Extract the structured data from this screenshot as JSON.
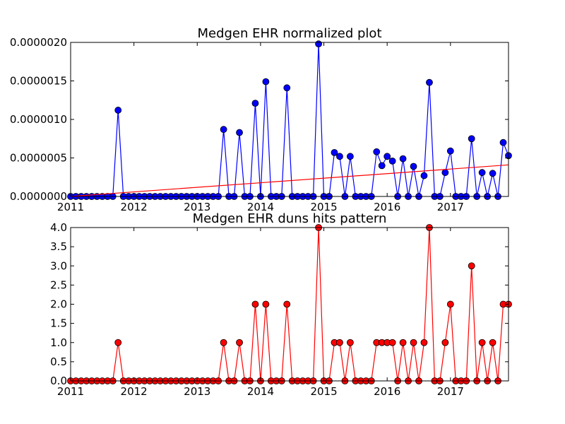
{
  "colors": {
    "top_series": "#0000ff",
    "top_trend": "#ff0000",
    "bottom_series": "#ff0000",
    "marker_edge": "#000000"
  },
  "chart_data": [
    {
      "type": "line",
      "title": "Medgen EHR normalized plot",
      "xlabel": "",
      "ylabel": "",
      "x_ticks": [
        "2011",
        "2012",
        "2013",
        "2014",
        "2015",
        "2016",
        "2017"
      ],
      "y_ticks": [
        "0.0000000",
        "0.0000005",
        "0.0000010",
        "0.0000015",
        "0.0000020"
      ],
      "xlim": [
        "2011-01",
        "2017-12"
      ],
      "ylim": [
        0,
        2e-06
      ],
      "grid": false,
      "series": [
        {
          "kind": "line-markers",
          "color": "#0000ff",
          "x": [
            "2011-01",
            "2011-02",
            "2011-03",
            "2011-04",
            "2011-05",
            "2011-06",
            "2011-07",
            "2011-08",
            "2011-09",
            "2011-10",
            "2011-11",
            "2011-12",
            "2012-01",
            "2012-02",
            "2012-03",
            "2012-04",
            "2012-05",
            "2012-06",
            "2012-07",
            "2012-08",
            "2012-09",
            "2012-10",
            "2012-11",
            "2012-12",
            "2013-01",
            "2013-02",
            "2013-03",
            "2013-04",
            "2013-05",
            "2013-06",
            "2013-07",
            "2013-08",
            "2013-09",
            "2013-10",
            "2013-11",
            "2013-12",
            "2014-01",
            "2014-02",
            "2014-03",
            "2014-04",
            "2014-05",
            "2014-06",
            "2014-07",
            "2014-08",
            "2014-09",
            "2014-10",
            "2014-11",
            "2014-12",
            "2015-01",
            "2015-02",
            "2015-03",
            "2015-04",
            "2015-05",
            "2015-06",
            "2015-07",
            "2015-08",
            "2015-09",
            "2015-10",
            "2015-11",
            "2015-12",
            "2016-01",
            "2016-02",
            "2016-03",
            "2016-04",
            "2016-05",
            "2016-06",
            "2016-07",
            "2016-08",
            "2016-09",
            "2016-10",
            "2016-11",
            "2016-12",
            "2017-01",
            "2017-02",
            "2017-03",
            "2017-04",
            "2017-05",
            "2017-06",
            "2017-07",
            "2017-08",
            "2017-09",
            "2017-10",
            "2017-11",
            "2017-12"
          ],
          "values": [
            0,
            0,
            0,
            0,
            0,
            0,
            0,
            0,
            0,
            1.12e-06,
            0,
            0,
            0,
            0,
            0,
            0,
            0,
            0,
            0,
            0,
            0,
            0,
            0,
            0,
            0,
            0,
            0,
            0,
            0,
            8.7e-07,
            0,
            0,
            8.3e-07,
            0,
            0,
            1.21e-06,
            0,
            1.49e-06,
            0,
            0,
            0,
            1.41e-06,
            0,
            0,
            0,
            0,
            0,
            1.98e-06,
            0,
            0,
            5.7e-07,
            5.2e-07,
            0,
            5.2e-07,
            0,
            0,
            0,
            0,
            5.8e-07,
            4e-07,
            5.2e-07,
            4.6e-07,
            0,
            4.9e-07,
            0,
            3.9e-07,
            0,
            2.7e-07,
            1.48e-06,
            0,
            0,
            3.1e-07,
            5.9e-07,
            0,
            0,
            0,
            7.5e-07,
            0,
            3.1e-07,
            0,
            3e-07,
            0,
            7e-07,
            5.3e-07
          ]
        },
        {
          "kind": "trend-line",
          "color": "#ff0000",
          "x": [
            "2011-01",
            "2017-12"
          ],
          "values": [
            0,
            4.1e-07
          ]
        }
      ]
    },
    {
      "type": "line",
      "title": "Medgen EHR duns hits pattern",
      "xlabel": "",
      "ylabel": "",
      "x_ticks": [
        "2011",
        "2012",
        "2013",
        "2014",
        "2015",
        "2016",
        "2017"
      ],
      "y_ticks": [
        "0.0",
        "0.5",
        "1.0",
        "1.5",
        "2.0",
        "2.5",
        "3.0",
        "3.5",
        "4.0"
      ],
      "xlim": [
        "2011-01",
        "2017-12"
      ],
      "ylim": [
        0,
        4
      ],
      "grid": false,
      "series": [
        {
          "kind": "line-markers",
          "color": "#ff0000",
          "x": [
            "2011-01",
            "2011-02",
            "2011-03",
            "2011-04",
            "2011-05",
            "2011-06",
            "2011-07",
            "2011-08",
            "2011-09",
            "2011-10",
            "2011-11",
            "2011-12",
            "2012-01",
            "2012-02",
            "2012-03",
            "2012-04",
            "2012-05",
            "2012-06",
            "2012-07",
            "2012-08",
            "2012-09",
            "2012-10",
            "2012-11",
            "2012-12",
            "2013-01",
            "2013-02",
            "2013-03",
            "2013-04",
            "2013-05",
            "2013-06",
            "2013-07",
            "2013-08",
            "2013-09",
            "2013-10",
            "2013-11",
            "2013-12",
            "2014-01",
            "2014-02",
            "2014-03",
            "2014-04",
            "2014-05",
            "2014-06",
            "2014-07",
            "2014-08",
            "2014-09",
            "2014-10",
            "2014-11",
            "2014-12",
            "2015-01",
            "2015-02",
            "2015-03",
            "2015-04",
            "2015-05",
            "2015-06",
            "2015-07",
            "2015-08",
            "2015-09",
            "2015-10",
            "2015-11",
            "2015-12",
            "2016-01",
            "2016-02",
            "2016-03",
            "2016-04",
            "2016-05",
            "2016-06",
            "2016-07",
            "2016-08",
            "2016-09",
            "2016-10",
            "2016-11",
            "2016-12",
            "2017-01",
            "2017-02",
            "2017-03",
            "2017-04",
            "2017-05",
            "2017-06",
            "2017-07",
            "2017-08",
            "2017-09",
            "2017-10",
            "2017-11",
            "2017-12"
          ],
          "values": [
            0,
            0,
            0,
            0,
            0,
            0,
            0,
            0,
            0,
            1,
            0,
            0,
            0,
            0,
            0,
            0,
            0,
            0,
            0,
            0,
            0,
            0,
            0,
            0,
            0,
            0,
            0,
            0,
            0,
            1,
            0,
            0,
            1,
            0,
            0,
            2,
            0,
            2,
            0,
            0,
            0,
            2,
            0,
            0,
            0,
            0,
            0,
            4,
            0,
            0,
            1,
            1,
            0,
            1,
            0,
            0,
            0,
            0,
            1,
            1,
            1,
            1,
            0,
            1,
            0,
            1,
            0,
            1,
            4,
            0,
            0,
            1,
            2,
            0,
            0,
            0,
            3,
            0,
            1,
            0,
            1,
            0,
            2,
            2
          ]
        }
      ]
    }
  ]
}
